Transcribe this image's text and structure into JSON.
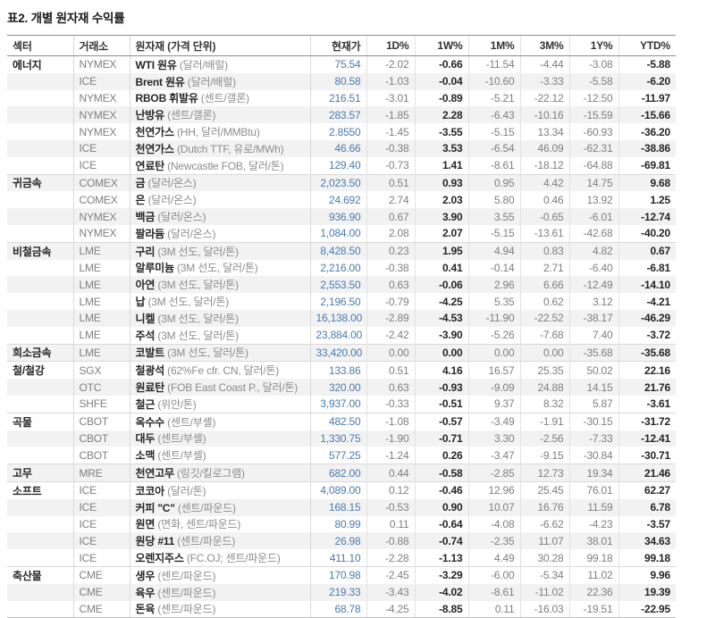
{
  "page_title": "표2. 개별 원자재 수익률",
  "colors": {
    "price_blue": "#4a7aae",
    "muted_gray": "#7f7f7f",
    "emphasis_black": "#262626",
    "row_stripe": "#f2f2f2",
    "header_border": "#8c8c8c"
  },
  "chart_data": {
    "type": "table",
    "title": "표2. 개별 원자재 수익률",
    "columns": [
      "섹터",
      "거래소",
      "원자재 (가격 단위)",
      "현재가",
      "1D%",
      "1W%",
      "1M%",
      "3M%",
      "1Y%",
      "YTD%"
    ],
    "sections": [
      {
        "sector": "에너지",
        "rows": [
          {
            "exchange": "NYMEX",
            "name": "WTI 원유",
            "unit": "(달러/배럴)",
            "values": [
              "75.54",
              "-2.02",
              "-0.66",
              "-11.54",
              "-4.44",
              "-3.08",
              "-5.88"
            ],
            "shaded": false
          },
          {
            "exchange": "ICE",
            "name": "Brent 원유",
            "unit": "(달러/배럴)",
            "values": [
              "80.58",
              "-1.03",
              "-0.04",
              "-10.60",
              "-3.33",
              "-5.58",
              "-6.20"
            ],
            "shaded": true
          },
          {
            "exchange": "NYMEX",
            "name": "RBOB 휘발유",
            "unit": "(센트/갤론)",
            "values": [
              "216.51",
              "-3.01",
              "-0.89",
              "-5.21",
              "-22.12",
              "-12.50",
              "-11.97"
            ],
            "shaded": false
          },
          {
            "exchange": "NYMEX",
            "name": "난방유",
            "unit": "(센트/갤론)",
            "values": [
              "283.57",
              "-1.85",
              "2.28",
              "-6.43",
              "-10.16",
              "-15.59",
              "-15.66"
            ],
            "shaded": true
          },
          {
            "exchange": "NYMEX",
            "name": "천연가스",
            "unit": "(HH, 달러/MMBtu)",
            "values": [
              "2.8550",
              "-1.45",
              "-3.55",
              "-5.15",
              "13.34",
              "-60.93",
              "-36.20"
            ],
            "shaded": false
          },
          {
            "exchange": "ICE",
            "name": "천연가스",
            "unit": "(Dutch TTF, 유로/MWh)",
            "values": [
              "46.66",
              "-0.38",
              "3.53",
              "-6.54",
              "46.09",
              "-62.31",
              "-38.86"
            ],
            "shaded": true
          },
          {
            "exchange": "ICE",
            "name": "연료탄",
            "unit": "(Newcastle FOB, 달러/톤)",
            "values": [
              "129.40",
              "-0.73",
              "1.41",
              "-8.61",
              "-18.12",
              "-64.88",
              "-69.81"
            ],
            "shaded": false
          }
        ]
      },
      {
        "sector": "귀금속",
        "rows": [
          {
            "exchange": "COMEX",
            "name": "금",
            "unit": "(달러/온스)",
            "values": [
              "2,023.50",
              "0.51",
              "0.93",
              "0.95",
              "4.42",
              "14.75",
              "9.68"
            ],
            "shaded": true
          },
          {
            "exchange": "COMEX",
            "name": "은",
            "unit": "(달러/온스)",
            "values": [
              "24.692",
              "2.74",
              "2.03",
              "5.80",
              "0.46",
              "13.92",
              "1.25"
            ],
            "shaded": false
          },
          {
            "exchange": "NYMEX",
            "name": "백금",
            "unit": "(달러/온스)",
            "values": [
              "936.90",
              "0.67",
              "3.90",
              "3.55",
              "-0.65",
              "-6.01",
              "-12.74"
            ],
            "shaded": true
          },
          {
            "exchange": "NYMEX",
            "name": "팔라듐",
            "unit": "(달러/온스)",
            "values": [
              "1,084.00",
              "2.08",
              "2.07",
              "-5.15",
              "-13.61",
              "-42.68",
              "-40.20"
            ],
            "shaded": false
          }
        ]
      },
      {
        "sector": "비철금속",
        "rows": [
          {
            "exchange": "LME",
            "name": "구리",
            "unit": "(3M 선도, 달러/톤)",
            "values": [
              "8,428.50",
              "0.23",
              "1.95",
              "4.94",
              "0.83",
              "4.82",
              "0.67"
            ],
            "shaded": true
          },
          {
            "exchange": "LME",
            "name": "알루미늄",
            "unit": "(3M 선도, 달러/톤)",
            "values": [
              "2,216.00",
              "-0.38",
              "0.41",
              "-0.14",
              "2.71",
              "-6.40",
              "-6.81"
            ],
            "shaded": false
          },
          {
            "exchange": "LME",
            "name": "아연",
            "unit": "(3M 선도, 달러/톤)",
            "values": [
              "2,553.50",
              "0.63",
              "-0.06",
              "2.96",
              "6.66",
              "-12.49",
              "-14.10"
            ],
            "shaded": true
          },
          {
            "exchange": "LME",
            "name": "납",
            "unit": "(3M 선도, 달러/톤)",
            "values": [
              "2,196.50",
              "-0.79",
              "-4.25",
              "5.35",
              "0.62",
              "3.12",
              "-4.21"
            ],
            "shaded": false
          },
          {
            "exchange": "LME",
            "name": "니켈",
            "unit": "(3M 선도, 달러/톤)",
            "values": [
              "16,138.00",
              "-2.89",
              "-4.53",
              "-11.90",
              "-22.52",
              "-38.17",
              "-46.29"
            ],
            "shaded": true
          },
          {
            "exchange": "LME",
            "name": "주석",
            "unit": "(3M 선도, 달러/톤)",
            "values": [
              "23,884.00",
              "-2.42",
              "-3.90",
              "-5.26",
              "-7.68",
              "7.40",
              "-3.72"
            ],
            "shaded": false
          }
        ]
      },
      {
        "sector": "희소금속",
        "rows": [
          {
            "exchange": "LME",
            "name": "코발트",
            "unit": "(3M 선도, 달러/톤)",
            "values": [
              "33,420.00",
              "0.00",
              "0.00",
              "0.00",
              "0.00",
              "-35.68",
              "-35.68"
            ],
            "shaded": true
          }
        ]
      },
      {
        "sector": "철/철강",
        "rows": [
          {
            "exchange": "SGX",
            "name": "철광석",
            "unit": "(62%Fe cfr. CN, 달러/톤)",
            "values": [
              "133.86",
              "0.51",
              "4.16",
              "16.57",
              "25.35",
              "50.02",
              "22.16"
            ],
            "shaded": false
          },
          {
            "exchange": "OTC",
            "name": "원료탄",
            "unit": "(FOB East Coast P., 달러/톤)",
            "values": [
              "320.00",
              "0.63",
              "-0.93",
              "-9.09",
              "24.88",
              "14.15",
              "21.76"
            ],
            "shaded": true
          },
          {
            "exchange": "SHFE",
            "name": "철근",
            "unit": "(위안/톤)",
            "values": [
              "3,937.00",
              "-0.33",
              "-0.51",
              "9.37",
              "8.32",
              "5.87",
              "-3.61"
            ],
            "shaded": false
          }
        ]
      },
      {
        "sector": "곡물",
        "rows": [
          {
            "exchange": "CBOT",
            "name": "옥수수",
            "unit": "(센트/부셸)",
            "values": [
              "482.50",
              "-1.08",
              "-0.57",
              "-3.49",
              "-1.91",
              "-30.15",
              "-31.72"
            ],
            "shaded": false
          },
          {
            "exchange": "CBOT",
            "name": "대두",
            "unit": "(센트/부셸)",
            "values": [
              "1,330.75",
              "-1.90",
              "-0.71",
              "3.30",
              "-2.56",
              "-7.33",
              "-12.41"
            ],
            "shaded": true
          },
          {
            "exchange": "CBOT",
            "name": "소맥",
            "unit": "(센트/부셸)",
            "values": [
              "577.25",
              "-1.24",
              "0.26",
              "-3.47",
              "-9.15",
              "-30.84",
              "-30.71"
            ],
            "shaded": false
          }
        ]
      },
      {
        "sector": "고무",
        "rows": [
          {
            "exchange": "MRE",
            "name": "천연고무",
            "unit": "(링깃/킬로그램)",
            "values": [
              "682.00",
              "0.44",
              "-0.58",
              "-2.85",
              "12.73",
              "19.34",
              "21.46"
            ],
            "shaded": true
          }
        ]
      },
      {
        "sector": "소프트",
        "rows": [
          {
            "exchange": "ICE",
            "name": "코코아",
            "unit": "(달러/톤)",
            "values": [
              "4,089.00",
              "0.12",
              "-0.46",
              "12.96",
              "25.45",
              "76.01",
              "62.27"
            ],
            "shaded": false
          },
          {
            "exchange": "ICE",
            "name": "커피 \"C\"",
            "unit": "(센트/파운드)",
            "values": [
              "168.15",
              "-0.53",
              "0.90",
              "10.07",
              "16.76",
              "11.59",
              "6.78"
            ],
            "shaded": true
          },
          {
            "exchange": "ICE",
            "name": "원면",
            "unit": "(면화, 센트/파운드)",
            "values": [
              "80.99",
              "0.11",
              "-0.64",
              "-4.08",
              "-6.62",
              "-4.23",
              "-3.57"
            ],
            "shaded": false
          },
          {
            "exchange": "ICE",
            "name": "원당 #11",
            "unit": "(센트/파운드)",
            "values": [
              "26.98",
              "-0.88",
              "-0.74",
              "-2.35",
              "11.07",
              "38.01",
              "34.63"
            ],
            "shaded": true
          },
          {
            "exchange": "ICE",
            "name": "오렌지주스",
            "unit": "(FC.OJ; 센트/파운드)",
            "values": [
              "411.10",
              "-2.28",
              "-1.13",
              "4.49",
              "30.28",
              "99.18",
              "99.18"
            ],
            "shaded": false
          }
        ]
      },
      {
        "sector": "축산물",
        "rows": [
          {
            "exchange": "CME",
            "name": "생우",
            "unit": "(센트/파운드)",
            "values": [
              "170.98",
              "-2.45",
              "-3.29",
              "-6.00",
              "-5.34",
              "11.02",
              "9.96"
            ],
            "shaded": false
          },
          {
            "exchange": "CME",
            "name": "육우",
            "unit": "(센트/파운드)",
            "values": [
              "219.33",
              "-3.43",
              "-4.02",
              "-8.61",
              "-11.02",
              "22.36",
              "19.39"
            ],
            "shaded": true
          },
          {
            "exchange": "CME",
            "name": "돈육",
            "unit": "(센트/파운드)",
            "values": [
              "68.78",
              "-4.25",
              "-8.85",
              "0.11",
              "-16.03",
              "-19.51",
              "-22.95"
            ],
            "shaded": false
          }
        ]
      }
    ]
  }
}
